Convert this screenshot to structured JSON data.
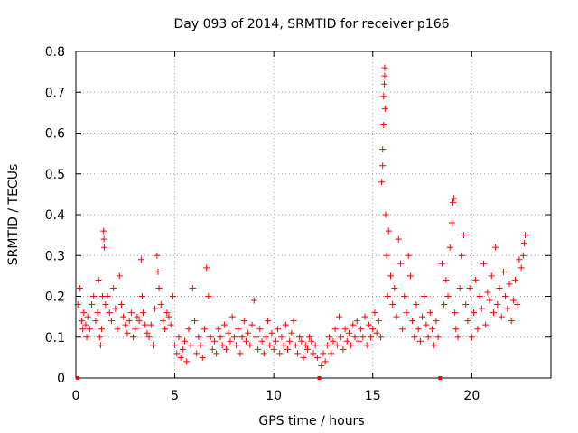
{
  "chart_data": {
    "type": "scatter",
    "title": "Day 093 of 2014, SRMTID for receiver p166",
    "xlabel": "GPS time / hours",
    "ylabel": "SRMTID / TECUs",
    "xlim": [
      0,
      24
    ],
    "ylim": [
      0,
      0.8
    ],
    "grid": true,
    "marker": "+",
    "color": "#ff0000",
    "xticks": [
      0,
      5,
      10,
      15,
      20
    ],
    "yticks": [
      0,
      0.1,
      0.2,
      0.3,
      0.4,
      0.5,
      0.6,
      0.7,
      0.8
    ],
    "xtick_labels": [
      "0",
      "5",
      "10",
      "15",
      "20"
    ],
    "ytick_labels": [
      "0",
      "0.1",
      "0.2",
      "0.3",
      "0.4",
      "0.5",
      "0.6",
      "0.7",
      "0.8"
    ],
    "series": [
      {
        "name": "SRMTID",
        "points": [
          [
            0.1,
            0.0
          ],
          [
            12.3,
            0.0
          ],
          [
            18.4,
            0.0
          ],
          [
            0.1,
            0.18
          ],
          [
            0.2,
            0.22
          ],
          [
            0.3,
            0.14
          ],
          [
            0.35,
            0.12
          ],
          [
            0.4,
            0.16
          ],
          [
            0.5,
            0.13
          ],
          [
            0.55,
            0.1
          ],
          [
            0.6,
            0.15
          ],
          [
            0.7,
            0.12
          ],
          [
            0.8,
            0.18
          ],
          [
            0.9,
            0.2
          ],
          [
            1.0,
            0.14
          ],
          [
            1.1,
            0.16
          ],
          [
            1.15,
            0.24
          ],
          [
            1.2,
            0.1
          ],
          [
            1.25,
            0.08
          ],
          [
            1.3,
            0.12
          ],
          [
            1.35,
            0.2
          ],
          [
            1.4,
            0.36
          ],
          [
            1.42,
            0.34
          ],
          [
            1.44,
            0.32
          ],
          [
            1.5,
            0.18
          ],
          [
            1.6,
            0.2
          ],
          [
            1.7,
            0.16
          ],
          [
            1.8,
            0.14
          ],
          [
            1.9,
            0.22
          ],
          [
            2.0,
            0.17
          ],
          [
            2.1,
            0.12
          ],
          [
            2.2,
            0.25
          ],
          [
            2.3,
            0.18
          ],
          [
            2.4,
            0.15
          ],
          [
            2.5,
            0.13
          ],
          [
            2.6,
            0.11
          ],
          [
            2.7,
            0.14
          ],
          [
            2.8,
            0.16
          ],
          [
            2.9,
            0.1
          ],
          [
            3.0,
            0.12
          ],
          [
            3.1,
            0.15
          ],
          [
            3.2,
            0.14
          ],
          [
            3.3,
            0.29
          ],
          [
            3.35,
            0.2
          ],
          [
            3.4,
            0.16
          ],
          [
            3.5,
            0.13
          ],
          [
            3.6,
            0.11
          ],
          [
            3.7,
            0.1
          ],
          [
            3.8,
            0.13
          ],
          [
            3.9,
            0.08
          ],
          [
            4.0,
            0.17
          ],
          [
            4.1,
            0.3
          ],
          [
            4.15,
            0.26
          ],
          [
            4.2,
            0.22
          ],
          [
            4.3,
            0.18
          ],
          [
            4.4,
            0.14
          ],
          [
            4.5,
            0.12
          ],
          [
            4.6,
            0.16
          ],
          [
            4.7,
            0.15
          ],
          [
            4.8,
            0.13
          ],
          [
            4.9,
            0.2
          ],
          [
            5.0,
            0.08
          ],
          [
            5.1,
            0.06
          ],
          [
            5.2,
            0.1
          ],
          [
            5.3,
            0.05
          ],
          [
            5.4,
            0.07
          ],
          [
            5.5,
            0.09
          ],
          [
            5.6,
            0.04
          ],
          [
            5.7,
            0.12
          ],
          [
            5.8,
            0.08
          ],
          [
            5.9,
            0.22
          ],
          [
            6.0,
            0.14
          ],
          [
            6.1,
            0.06
          ],
          [
            6.2,
            0.1
          ],
          [
            6.3,
            0.08
          ],
          [
            6.4,
            0.05
          ],
          [
            6.5,
            0.12
          ],
          [
            6.6,
            0.27
          ],
          [
            6.7,
            0.2
          ],
          [
            6.8,
            0.1
          ],
          [
            6.9,
            0.07
          ],
          [
            7.0,
            0.09
          ],
          [
            7.1,
            0.06
          ],
          [
            7.2,
            0.12
          ],
          [
            7.3,
            0.1
          ],
          [
            7.4,
            0.08
          ],
          [
            7.5,
            0.13
          ],
          [
            7.6,
            0.07
          ],
          [
            7.7,
            0.11
          ],
          [
            7.8,
            0.09
          ],
          [
            7.9,
            0.15
          ],
          [
            8.0,
            0.1
          ],
          [
            8.1,
            0.08
          ],
          [
            8.2,
            0.12
          ],
          [
            8.3,
            0.06
          ],
          [
            8.4,
            0.1
          ],
          [
            8.5,
            0.14
          ],
          [
            8.6,
            0.09
          ],
          [
            8.7,
            0.11
          ],
          [
            8.8,
            0.08
          ],
          [
            8.9,
            0.13
          ],
          [
            9.0,
            0.19
          ],
          [
            9.1,
            0.1
          ],
          [
            9.2,
            0.07
          ],
          [
            9.3,
            0.12
          ],
          [
            9.4,
            0.09
          ],
          [
            9.5,
            0.06
          ],
          [
            9.6,
            0.1
          ],
          [
            9.7,
            0.14
          ],
          [
            9.8,
            0.08
          ],
          [
            9.9,
            0.11
          ],
          [
            10.0,
            0.07
          ],
          [
            10.1,
            0.09
          ],
          [
            10.2,
            0.12
          ],
          [
            10.3,
            0.06
          ],
          [
            10.4,
            0.1
          ],
          [
            10.5,
            0.08
          ],
          [
            10.6,
            0.13
          ],
          [
            10.7,
            0.07
          ],
          [
            10.8,
            0.09
          ],
          [
            10.9,
            0.11
          ],
          [
            11.0,
            0.14
          ],
          [
            11.1,
            0.08
          ],
          [
            11.2,
            0.06
          ],
          [
            11.3,
            0.1
          ],
          [
            11.4,
            0.09
          ],
          [
            11.5,
            0.05
          ],
          [
            11.6,
            0.08
          ],
          [
            11.7,
            0.07
          ],
          [
            11.8,
            0.1
          ],
          [
            11.9,
            0.09
          ],
          [
            12.0,
            0.06
          ],
          [
            12.1,
            0.08
          ],
          [
            12.2,
            0.05
          ],
          [
            12.4,
            0.03
          ],
          [
            12.5,
            0.06
          ],
          [
            12.6,
            0.04
          ],
          [
            12.7,
            0.08
          ],
          [
            12.8,
            0.1
          ],
          [
            12.9,
            0.06
          ],
          [
            13.0,
            0.09
          ],
          [
            13.1,
            0.12
          ],
          [
            13.2,
            0.08
          ],
          [
            13.3,
            0.15
          ],
          [
            13.4,
            0.1
          ],
          [
            13.5,
            0.07
          ],
          [
            13.6,
            0.12
          ],
          [
            13.7,
            0.09
          ],
          [
            13.8,
            0.11
          ],
          [
            13.9,
            0.08
          ],
          [
            14.0,
            0.13
          ],
          [
            14.1,
            0.1
          ],
          [
            14.2,
            0.14
          ],
          [
            14.3,
            0.09
          ],
          [
            14.4,
            0.12
          ],
          [
            14.5,
            0.1
          ],
          [
            14.6,
            0.15
          ],
          [
            14.7,
            0.08
          ],
          [
            14.8,
            0.13
          ],
          [
            14.9,
            0.1
          ],
          [
            15.0,
            0.12
          ],
          [
            15.1,
            0.16
          ],
          [
            15.2,
            0.11
          ],
          [
            15.3,
            0.14
          ],
          [
            15.4,
            0.1
          ],
          [
            15.45,
            0.48
          ],
          [
            15.5,
            0.52
          ],
          [
            15.5,
            0.56
          ],
          [
            15.55,
            0.62
          ],
          [
            15.55,
            0.69
          ],
          [
            15.58,
            0.72
          ],
          [
            15.6,
            0.74
          ],
          [
            15.6,
            0.76
          ],
          [
            15.62,
            0.66
          ],
          [
            15.65,
            0.4
          ],
          [
            15.7,
            0.3
          ],
          [
            15.75,
            0.2
          ],
          [
            15.8,
            0.36
          ],
          [
            15.9,
            0.25
          ],
          [
            16.0,
            0.18
          ],
          [
            16.1,
            0.22
          ],
          [
            16.2,
            0.15
          ],
          [
            16.3,
            0.34
          ],
          [
            16.4,
            0.28
          ],
          [
            16.5,
            0.12
          ],
          [
            16.6,
            0.2
          ],
          [
            16.7,
            0.16
          ],
          [
            16.8,
            0.3
          ],
          [
            16.9,
            0.25
          ],
          [
            17.0,
            0.14
          ],
          [
            17.1,
            0.1
          ],
          [
            17.2,
            0.18
          ],
          [
            17.3,
            0.12
          ],
          [
            17.4,
            0.09
          ],
          [
            17.5,
            0.15
          ],
          [
            17.6,
            0.2
          ],
          [
            17.7,
            0.13
          ],
          [
            17.8,
            0.1
          ],
          [
            17.9,
            0.16
          ],
          [
            18.0,
            0.12
          ],
          [
            18.1,
            0.08
          ],
          [
            18.2,
            0.14
          ],
          [
            18.3,
            0.1
          ],
          [
            18.5,
            0.28
          ],
          [
            18.6,
            0.18
          ],
          [
            18.7,
            0.24
          ],
          [
            18.8,
            0.2
          ],
          [
            18.9,
            0.32
          ],
          [
            19.0,
            0.38
          ],
          [
            19.05,
            0.43
          ],
          [
            19.1,
            0.44
          ],
          [
            19.15,
            0.16
          ],
          [
            19.2,
            0.12
          ],
          [
            19.3,
            0.1
          ],
          [
            19.4,
            0.22
          ],
          [
            19.5,
            0.3
          ],
          [
            19.6,
            0.35
          ],
          [
            19.7,
            0.18
          ],
          [
            19.8,
            0.14
          ],
          [
            19.9,
            0.22
          ],
          [
            20.0,
            0.1
          ],
          [
            20.1,
            0.16
          ],
          [
            20.2,
            0.24
          ],
          [
            20.3,
            0.12
          ],
          [
            20.4,
            0.2
          ],
          [
            20.5,
            0.17
          ],
          [
            20.6,
            0.28
          ],
          [
            20.7,
            0.13
          ],
          [
            20.8,
            0.21
          ],
          [
            20.9,
            0.19
          ],
          [
            21.0,
            0.25
          ],
          [
            21.1,
            0.16
          ],
          [
            21.2,
            0.32
          ],
          [
            21.3,
            0.18
          ],
          [
            21.4,
            0.22
          ],
          [
            21.5,
            0.15
          ],
          [
            21.6,
            0.26
          ],
          [
            21.7,
            0.2
          ],
          [
            21.8,
            0.17
          ],
          [
            21.9,
            0.23
          ],
          [
            22.0,
            0.14
          ],
          [
            22.1,
            0.19
          ],
          [
            22.2,
            0.24
          ],
          [
            22.3,
            0.18
          ],
          [
            22.4,
            0.29
          ],
          [
            22.5,
            0.27
          ],
          [
            22.6,
            0.3
          ],
          [
            22.65,
            0.33
          ],
          [
            22.7,
            0.35
          ]
        ]
      }
    ]
  }
}
